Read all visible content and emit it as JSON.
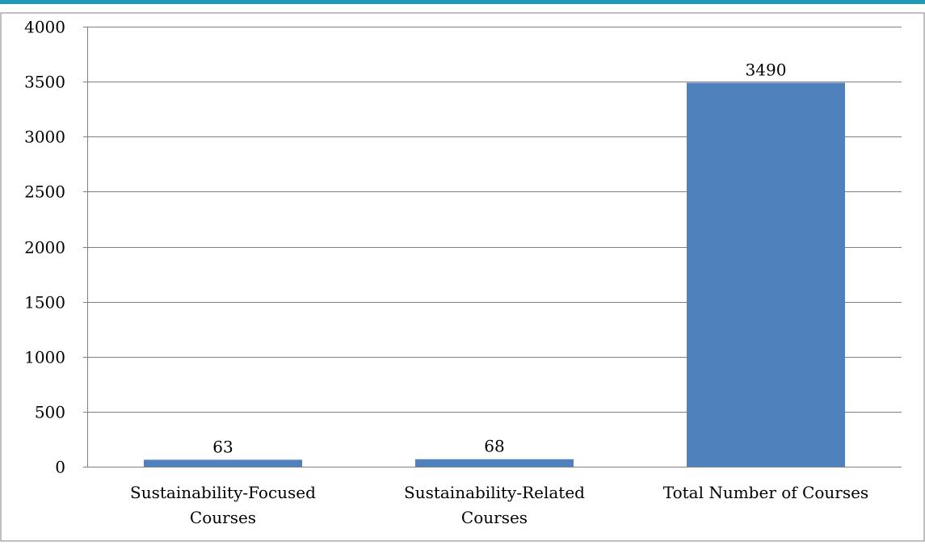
{
  "chart_data": {
    "type": "bar",
    "title": "",
    "xlabel": "",
    "ylabel": "",
    "categories": [
      "Sustainability-Focused Courses",
      "Sustainability-Related Courses",
      "Total Number of Courses"
    ],
    "category_lines": [
      [
        "Sustainability-Focused",
        "Courses"
      ],
      [
        "Sustainability-Related",
        "Courses"
      ],
      [
        "Total Number of Courses"
      ]
    ],
    "values": [
      63,
      68,
      3490
    ],
    "data_labels": [
      "63",
      "68",
      "3490"
    ],
    "ylim": [
      0,
      4000
    ],
    "yticks": [
      0,
      500,
      1000,
      1500,
      2000,
      2500,
      3000,
      3500,
      4000
    ],
    "ytick_labels": [
      "0",
      "500",
      "1000",
      "1500",
      "2000",
      "2500",
      "3000",
      "3500",
      "4000"
    ],
    "grid": true,
    "legend": "none",
    "bar_color": "#4f81bd",
    "gridline_color": "#7f7f7f",
    "border_color": "#7f7f7f",
    "top_fragment_color": "#1f9ab6"
  }
}
